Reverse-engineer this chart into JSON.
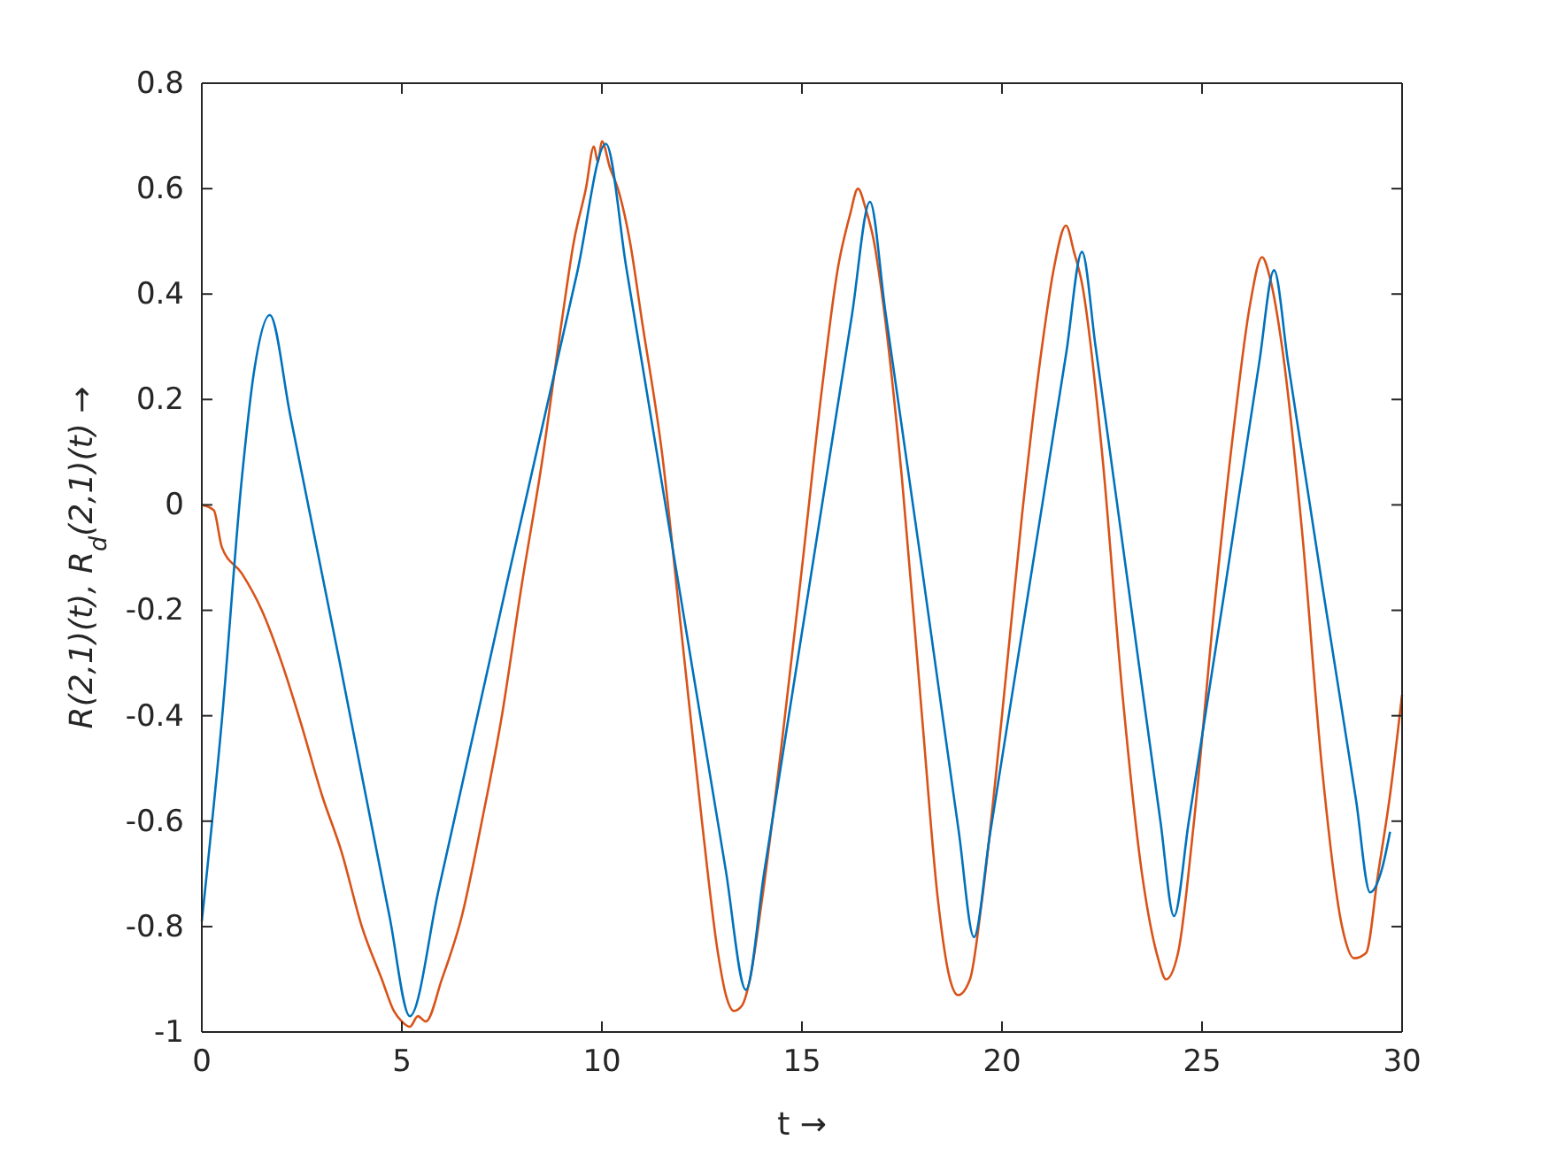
{
  "chart_data": {
    "type": "line",
    "xlabel": "t →",
    "ylabel": "R(2,1)(t), R$_{d}$(2,1)(t) →",
    "xlim": [
      0,
      30
    ],
    "xticks": [
      0,
      5,
      10,
      15,
      20,
      25,
      30
    ],
    "ylim": [
      -1,
      0.8
    ],
    "yticks": [
      -1,
      -0.8,
      -0.6,
      -0.4,
      -0.2,
      0,
      0.2,
      0.4,
      0.6,
      0.8
    ],
    "line_style": "solid",
    "marker": "none",
    "series": [
      {
        "color": "#d95319",
        "x": [
          0,
          0.3,
          0.5,
          1,
          1.5,
          2,
          2.5,
          3,
          3.5,
          4,
          4.5,
          4.8,
          5,
          5.2,
          5.4,
          5.6,
          6,
          6.5,
          7,
          7.5,
          8,
          8.5,
          9,
          9.3,
          9.6,
          9.8,
          9.9,
          10,
          10.2,
          10.4,
          10.7,
          11,
          11.5,
          12,
          12.5,
          12.9,
          13.1,
          13.3,
          13.5,
          13.7,
          14,
          14.5,
          15,
          15.5,
          15.9,
          16.2,
          16.4,
          16.6,
          16.8,
          17,
          17.5,
          18,
          18.4,
          18.7,
          18.9,
          19.2,
          19.5,
          20,
          20.5,
          21,
          21.3,
          21.6,
          21.8,
          22,
          22.5,
          23,
          23.5,
          23.9,
          24.1,
          24.4,
          24.8,
          25.3,
          25.8,
          26.2,
          26.5,
          26.7,
          27,
          27.5,
          28,
          28.5,
          28.8,
          29.1,
          29.4,
          29.7,
          30
        ],
        "values": [
          0,
          -0.01,
          -0.08,
          -0.13,
          -0.2,
          -0.3,
          -0.42,
          -0.55,
          -0.66,
          -0.8,
          -0.9,
          -0.96,
          -0.98,
          -0.99,
          -0.97,
          -0.98,
          -0.9,
          -0.78,
          -0.6,
          -0.4,
          -0.15,
          0.08,
          0.35,
          0.5,
          0.6,
          0.68,
          0.65,
          0.69,
          0.64,
          0.6,
          0.5,
          0.35,
          0.1,
          -0.25,
          -0.6,
          -0.85,
          -0.93,
          -0.96,
          -0.95,
          -0.9,
          -0.75,
          -0.45,
          -0.12,
          0.22,
          0.45,
          0.55,
          0.6,
          0.56,
          0.5,
          0.4,
          0.05,
          -0.4,
          -0.75,
          -0.9,
          -0.93,
          -0.9,
          -0.75,
          -0.4,
          -0.02,
          0.3,
          0.45,
          0.53,
          0.48,
          0.42,
          0.1,
          -0.35,
          -0.7,
          -0.86,
          -0.9,
          -0.85,
          -0.6,
          -0.2,
          0.15,
          0.38,
          0.47,
          0.43,
          0.3,
          -0.05,
          -0.5,
          -0.8,
          -0.86,
          -0.85,
          -0.7,
          -0.55,
          -0.36
        ]
      },
      {
        "color": "#0072bd",
        "x": [
          0,
          0.5,
          1,
          1.3,
          1.7,
          2.21,
          3.45,
          4.69,
          5.2,
          5.92,
          7.65,
          9.38,
          10.1,
          10.61,
          11.85,
          13.09,
          13.6,
          14.05,
          15.15,
          16.25,
          16.7,
          17.08,
          18,
          18.92,
          19.3,
          19.69,
          20.65,
          21.61,
          22,
          22.34,
          23.15,
          23.96,
          24.3,
          24.67,
          25.55,
          26.43,
          26.8,
          27.15,
          28,
          28.85,
          29.2,
          29.5,
          29.7
        ],
        "values": [
          -0.79,
          -0.41,
          0.05,
          0.25,
          0.36,
          0.17,
          -0.3,
          -0.78,
          -0.97,
          -0.73,
          -0.14,
          0.44,
          0.685,
          0.45,
          -0.12,
          -0.69,
          -0.92,
          -0.7,
          -0.17,
          0.36,
          0.575,
          0.37,
          -0.12,
          -0.62,
          -0.82,
          -0.63,
          -0.17,
          0.29,
          0.48,
          0.3,
          -0.15,
          -0.6,
          -0.78,
          -0.6,
          -0.17,
          0.27,
          0.445,
          0.27,
          -0.15,
          -0.56,
          -0.735,
          -0.69,
          -0.62
        ]
      }
    ]
  }
}
